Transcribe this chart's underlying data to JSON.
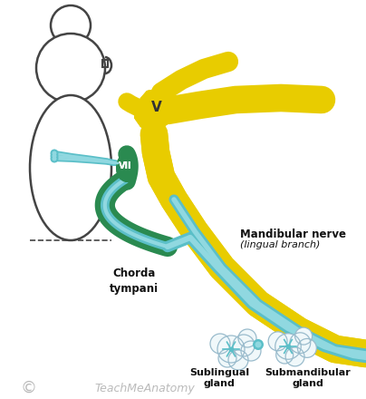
{
  "bg_color": "#ffffff",
  "body_outline_color": "#444444",
  "yellow_color": "#e8cc00",
  "green_color": "#2a8a50",
  "cyan_color": "#5bbfc8",
  "cyan_light": "#90d8e0",
  "gland_fill": "#f0f8fa",
  "gland_outline": "#99bbcc",
  "text_color": "#111111",
  "watermark_color": "#bbbbbb",
  "chorda_label": "Chorda\ntympani",
  "mand_label1": "Mandibular nerve",
  "mand_label2": "(lingual branch)",
  "sublingual_label": "Sublingual\ngland",
  "submandibular_label": "Submandibular\ngland",
  "nerve_v_label": "V",
  "nerve_vii_label": "VII",
  "figw": 4.04,
  "figh": 4.4,
  "dpi": 100
}
